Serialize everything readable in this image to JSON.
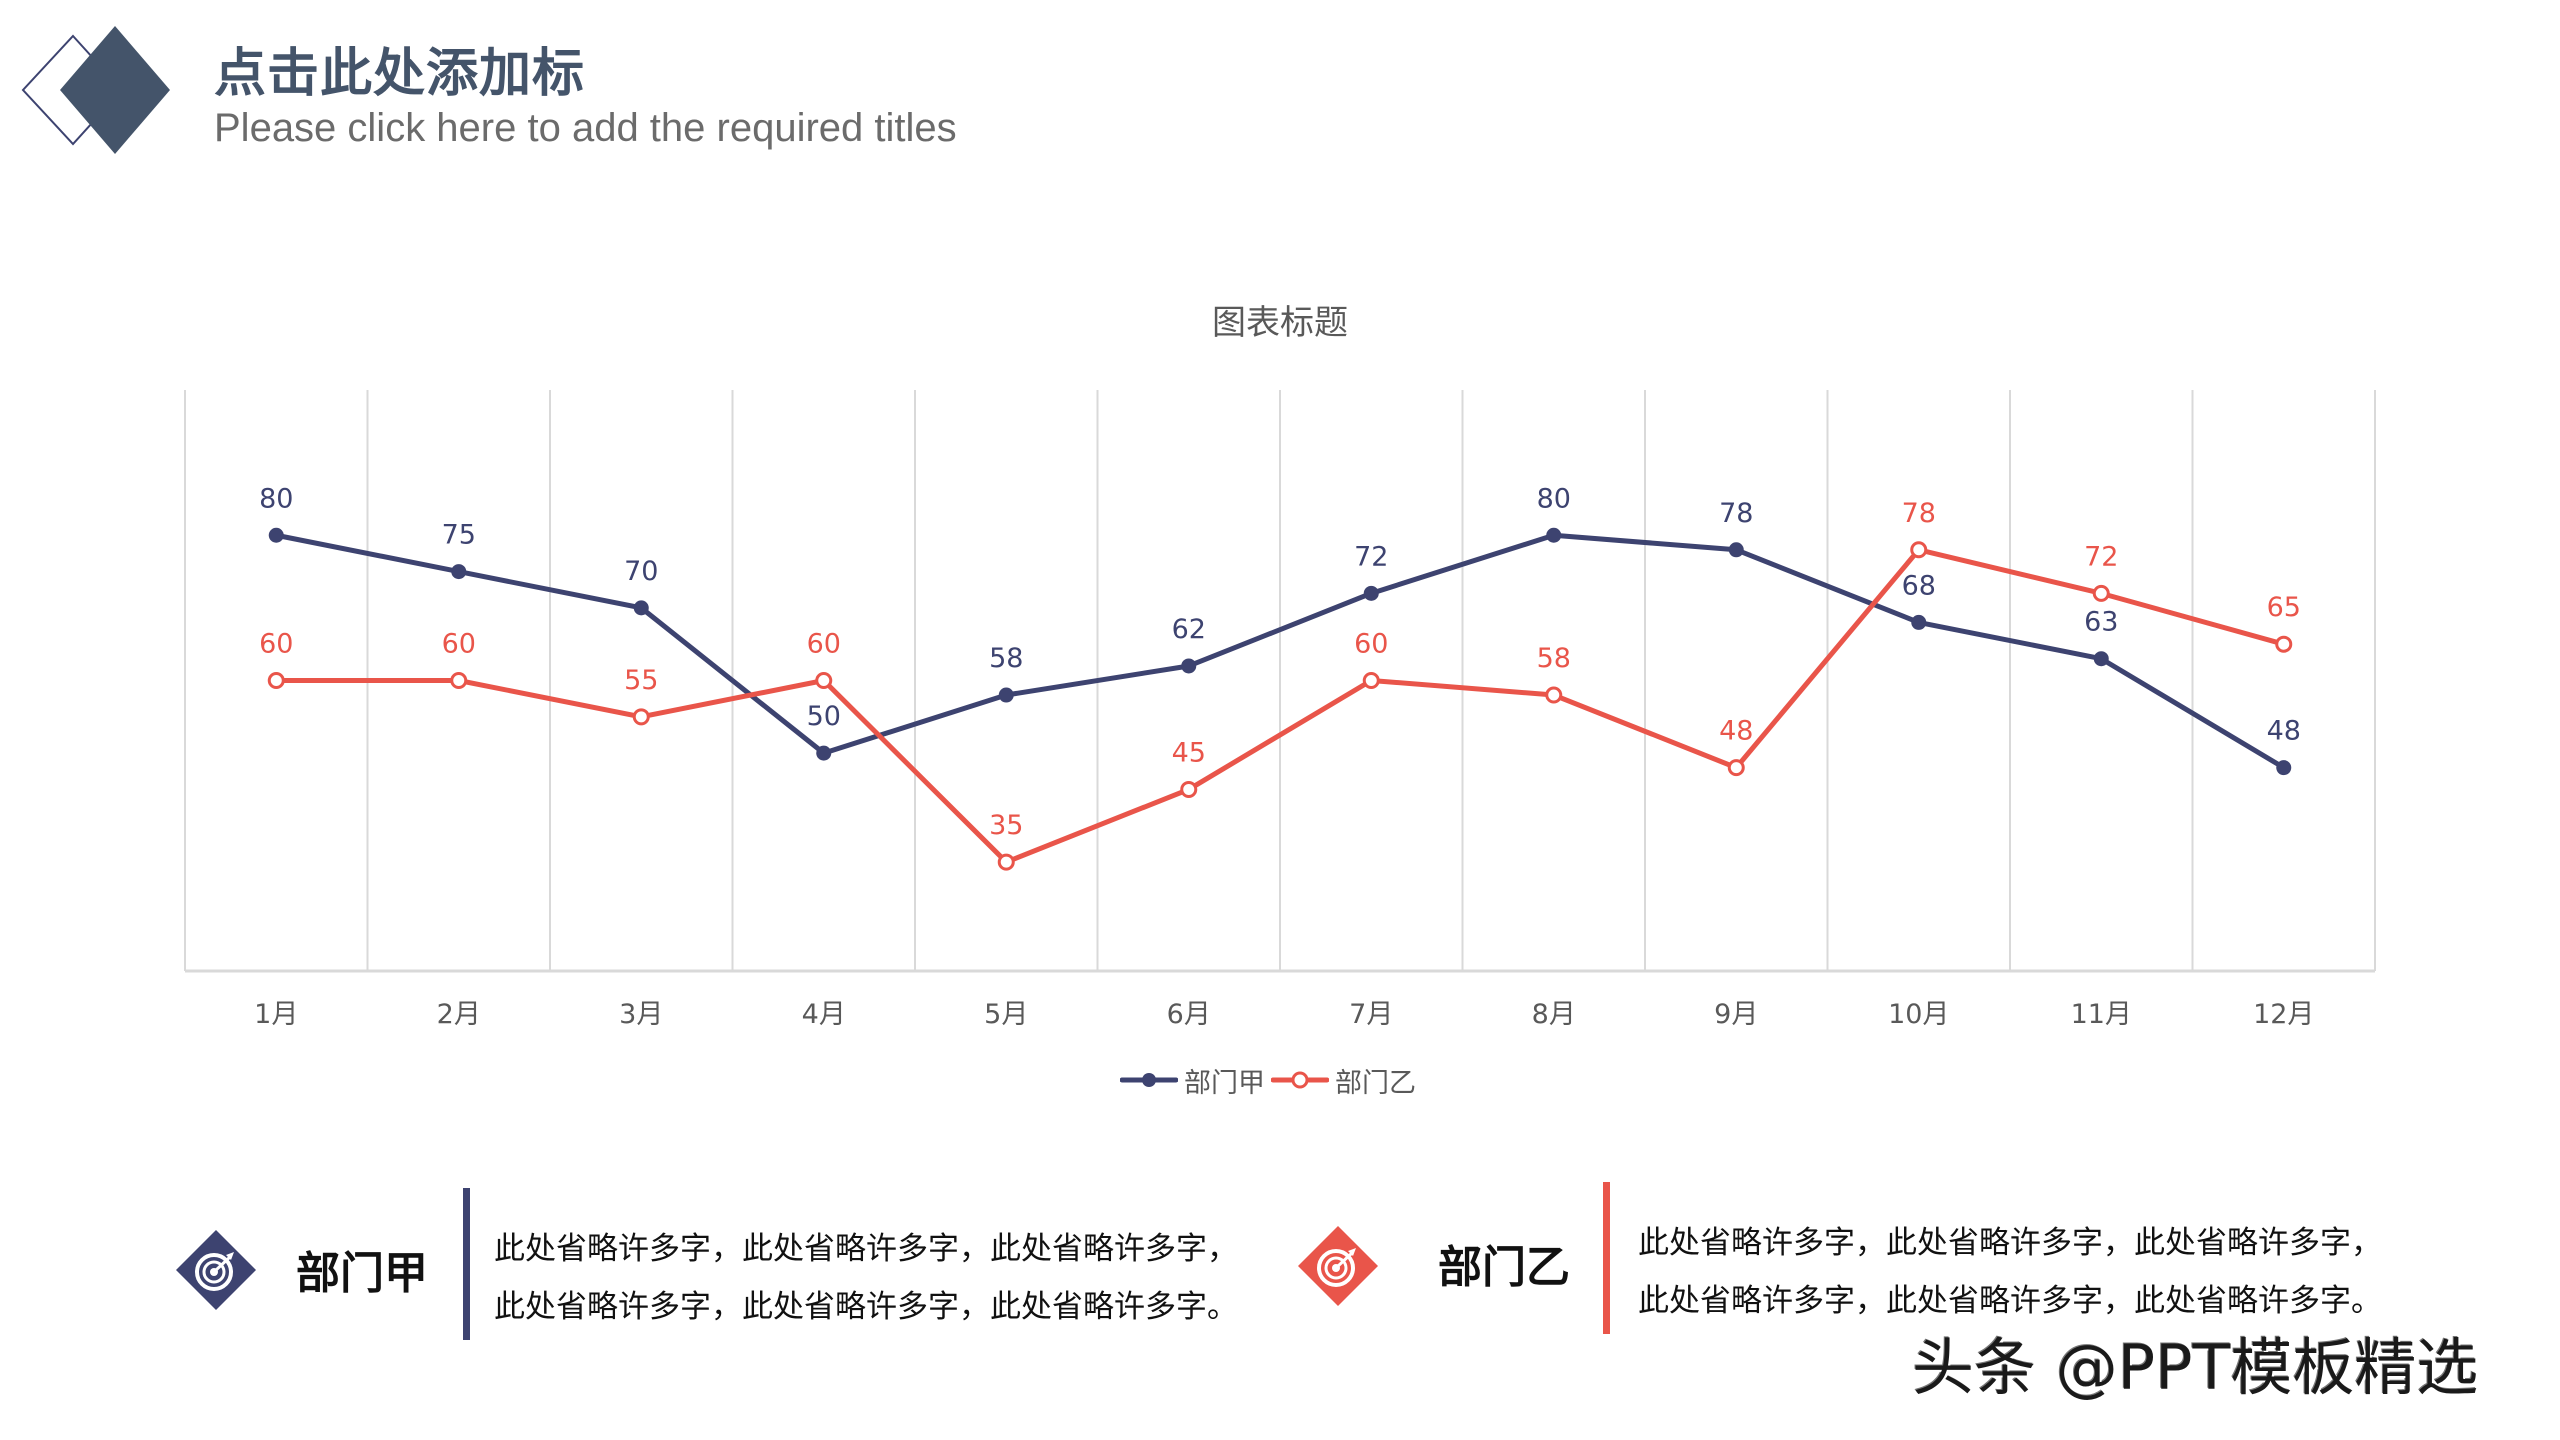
{
  "header": {
    "title_cn": "点击此处添加标",
    "title_en": "Please click here to add the required titles"
  },
  "colors": {
    "series_a": "#3d4370",
    "series_b": "#e9554a",
    "header_accent": "#44546a",
    "grid": "#d9d9d9",
    "axis_text": "#595959"
  },
  "chart_data": {
    "type": "line",
    "title": "图表标题",
    "categories": [
      "1月",
      "2月",
      "3月",
      "4月",
      "5月",
      "6月",
      "7月",
      "8月",
      "9月",
      "10月",
      "11月",
      "12月"
    ],
    "series": [
      {
        "name": "部门甲",
        "values": [
          80,
          75,
          70,
          50,
          58,
          62,
          72,
          80,
          78,
          68,
          63,
          48
        ],
        "marker": "filled-circle",
        "color": "#3d4370"
      },
      {
        "name": "部门乙",
        "values": [
          60,
          60,
          55,
          60,
          35,
          45,
          60,
          58,
          48,
          78,
          72,
          65
        ],
        "marker": "hollow-circle",
        "color": "#e9554a"
      }
    ],
    "xlabel": "",
    "ylabel": "",
    "ylim": [
      20,
      100
    ],
    "grid": "vertical category gridlines",
    "data_labels": true,
    "legend_position": "bottom"
  },
  "cards": [
    {
      "name": "部门甲",
      "icon": "target-icon",
      "lines": [
        "此处省略许多字，此处省略许多字，此处省略许多字，",
        "此处省略许多字，此处省略许多字，此处省略许多字。"
      ]
    },
    {
      "name": "部门乙",
      "icon": "target-icon",
      "lines": [
        "此处省略许多字，此处省略许多字，此处省略许多字，",
        "此处省略许多字，此处省略许多字，此处省略许多字。"
      ]
    }
  ],
  "watermark": "头条 @PPT模板精选"
}
